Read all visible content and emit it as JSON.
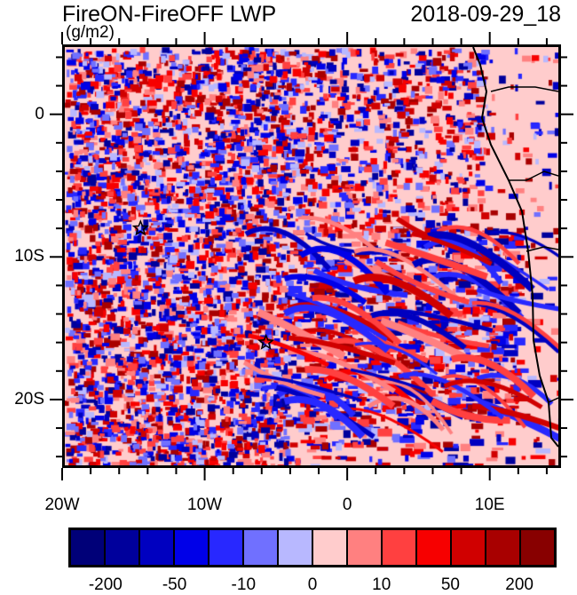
{
  "title": "FireON-FireOFF LWP",
  "date": "2018-09-29_18",
  "units": "(g/m2)",
  "x_ticks": [
    {
      "label": "20W",
      "lon": -20
    },
    {
      "label": "10W",
      "lon": -10
    },
    {
      "label": "0",
      "lon": 0
    },
    {
      "label": "10E",
      "lon": 10
    }
  ],
  "y_ticks": [
    {
      "label": "0",
      "lat": 0
    },
    {
      "label": "10S",
      "lat": -10
    },
    {
      "label": "20S",
      "lat": -20
    }
  ],
  "extent": {
    "lon": [
      -20,
      15
    ],
    "lat": [
      -24.8,
      4.9
    ]
  },
  "markers": [
    {
      "lon": -14.5,
      "lat": -8
    },
    {
      "lon": -5.7,
      "lat": -16
    }
  ],
  "colorbar": {
    "colors": [
      "#000078",
      "#00009c",
      "#0000c0",
      "#0000e8",
      "#2828ff",
      "#7070ff",
      "#b8b8ff",
      "#ffcccc",
      "#ff8080",
      "#ff4040",
      "#f70000",
      "#d00000",
      "#a80000",
      "#880000"
    ],
    "labels": [
      {
        "text": "-200",
        "boundary": 1
      },
      {
        "text": "-50",
        "boundary": 3
      },
      {
        "text": "-10",
        "boundary": 5
      },
      {
        "text": "0",
        "boundary": 7
      },
      {
        "text": "10",
        "boundary": 9
      },
      {
        "text": "50",
        "boundary": 11
      },
      {
        "text": "200",
        "boundary": 13
      }
    ]
  }
}
